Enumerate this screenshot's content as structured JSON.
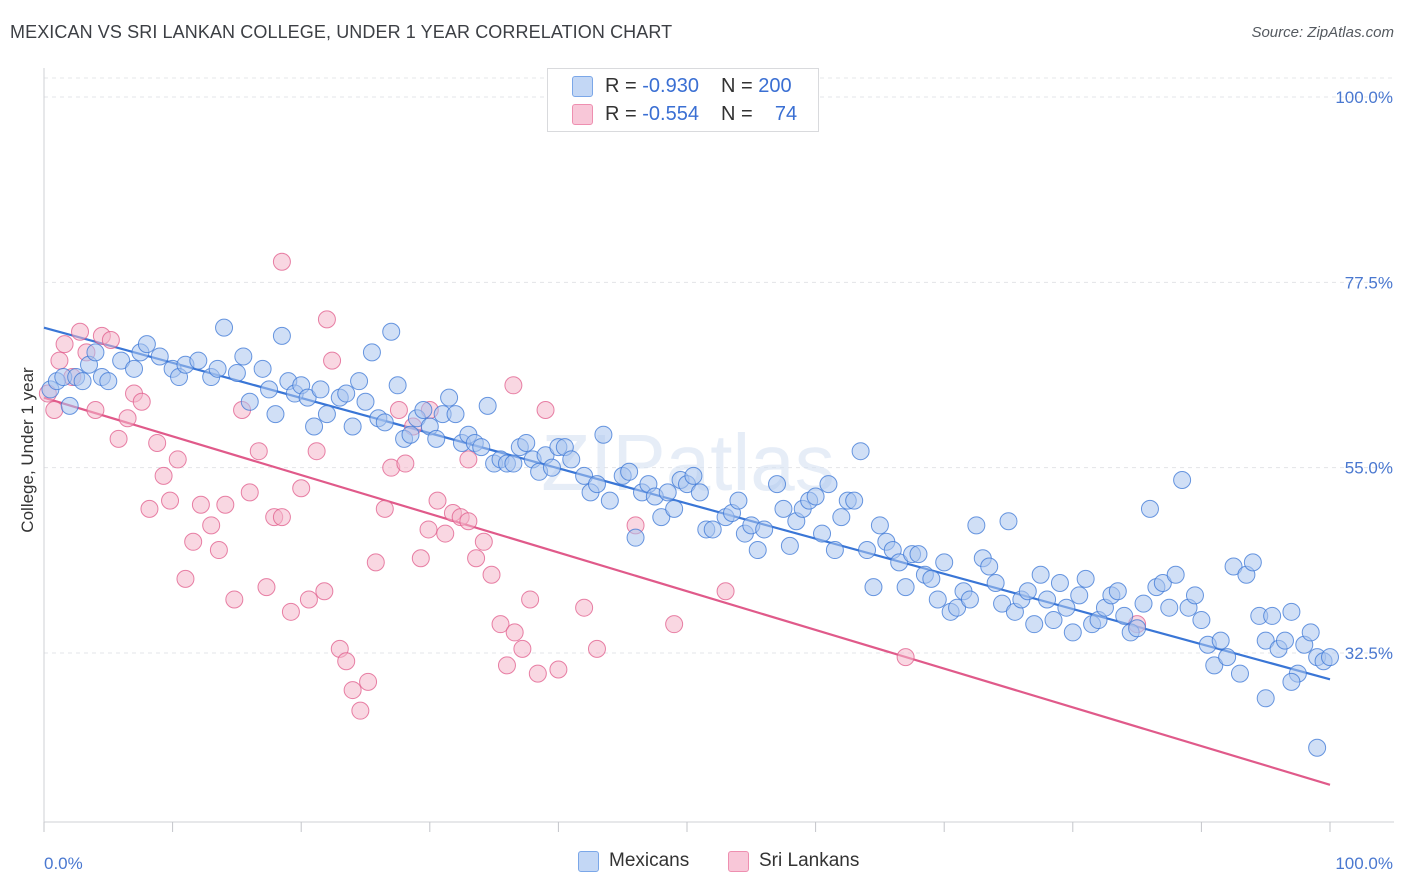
{
  "title": "MEXICAN VS SRI LANKAN COLLEGE, UNDER 1 YEAR CORRELATION CHART",
  "source": "Source: ZipAtlas.com",
  "watermark": "ZIPatlas",
  "legend": {
    "r_label": "R =",
    "n_label": "N =",
    "rows": [
      {
        "r": "-0.930",
        "n": "200",
        "color": "#7ba7e8",
        "fill": "#c3d7f5"
      },
      {
        "r": "-0.554",
        "n": "74",
        "color": "#ee8fb0",
        "fill": "#f8c7d8"
      }
    ]
  },
  "bottom_legend": [
    "Mexicans",
    "Sri Lankans"
  ],
  "chart_data": {
    "type": "scatter",
    "title": "MEXICAN VS SRI LANKAN COLLEGE, UNDER 1 YEAR CORRELATION CHART",
    "xlabel": "",
    "ylabel": "College, Under 1 year",
    "xlim": [
      0,
      100
    ],
    "ylim": [
      10,
      105
    ],
    "x_tick_labels": [
      "0.0%",
      "100.0%"
    ],
    "y_ticks": [
      32.5,
      55.0,
      77.5,
      100.0
    ],
    "y_tick_labels": [
      "32.5%",
      "55.0%",
      "77.5%",
      "100.0%"
    ],
    "grid": true,
    "legend_placement": "top-center",
    "series": [
      {
        "name": "Mexicans",
        "color": "#3a76d6",
        "fill": "#a9c5ef",
        "trend": {
          "x": [
            0,
            100
          ],
          "y": [
            72.0,
            29.3
          ]
        },
        "points": [
          [
            0.5,
            64.5
          ],
          [
            1,
            65.5
          ],
          [
            1.5,
            66
          ],
          [
            2,
            62.5
          ],
          [
            2.5,
            66
          ],
          [
            3,
            65.5
          ],
          [
            3.5,
            67.5
          ],
          [
            4,
            69
          ],
          [
            4.5,
            66
          ],
          [
            5,
            65.5
          ],
          [
            6,
            68
          ],
          [
            7,
            67
          ],
          [
            7.5,
            69
          ],
          [
            8,
            70
          ],
          [
            9,
            68.5
          ],
          [
            10,
            67
          ],
          [
            10.5,
            66
          ],
          [
            11,
            67.5
          ],
          [
            12,
            68
          ],
          [
            13,
            66
          ],
          [
            13.5,
            67
          ],
          [
            14,
            72
          ],
          [
            15,
            66.5
          ],
          [
            15.5,
            68.5
          ],
          [
            16,
            63
          ],
          [
            17,
            67
          ],
          [
            17.5,
            64.5
          ],
          [
            18,
            61.5
          ],
          [
            18.5,
            71
          ],
          [
            19,
            65.5
          ],
          [
            19.5,
            64
          ],
          [
            20,
            65
          ],
          [
            20.5,
            63.5
          ],
          [
            21,
            60
          ],
          [
            21.5,
            64.5
          ],
          [
            22,
            61.5
          ],
          [
            23,
            63.5
          ],
          [
            23.5,
            64
          ],
          [
            24,
            60
          ],
          [
            24.5,
            65.5
          ],
          [
            25,
            63
          ],
          [
            25.5,
            69
          ],
          [
            26,
            61
          ],
          [
            26.5,
            60.5
          ],
          [
            27,
            71.5
          ],
          [
            27.5,
            65
          ],
          [
            28,
            58.5
          ],
          [
            28.5,
            59
          ],
          [
            29,
            61
          ],
          [
            29.5,
            62
          ],
          [
            30,
            60
          ],
          [
            30.5,
            58.5
          ],
          [
            31,
            61.5
          ],
          [
            31.5,
            63.5
          ],
          [
            32,
            61.5
          ],
          [
            32.5,
            58
          ],
          [
            33,
            59
          ],
          [
            33.5,
            58
          ],
          [
            34,
            57.5
          ],
          [
            34.5,
            62.5
          ],
          [
            35,
            55.5
          ],
          [
            35.5,
            56
          ],
          [
            36,
            55.5
          ],
          [
            36.5,
            55.5
          ],
          [
            37,
            57.5
          ],
          [
            37.5,
            58
          ],
          [
            38,
            56
          ],
          [
            38.5,
            54.5
          ],
          [
            39,
            56.5
          ],
          [
            39.5,
            55
          ],
          [
            40,
            57.5
          ],
          [
            40.5,
            57.5
          ],
          [
            41,
            56
          ],
          [
            42,
            54
          ],
          [
            42.5,
            52
          ],
          [
            43,
            53
          ],
          [
            43.5,
            59
          ],
          [
            44,
            51
          ],
          [
            45,
            54
          ],
          [
            45.5,
            54.5
          ],
          [
            46,
            46.5
          ],
          [
            46.5,
            52
          ],
          [
            47,
            53
          ],
          [
            47.5,
            51.5
          ],
          [
            48,
            49
          ],
          [
            48.5,
            52
          ],
          [
            49,
            50
          ],
          [
            49.5,
            53.5
          ],
          [
            50,
            53
          ],
          [
            50.5,
            54
          ],
          [
            51,
            52
          ],
          [
            51.5,
            47.5
          ],
          [
            52,
            47.5
          ],
          [
            53,
            49
          ],
          [
            53.5,
            49.5
          ],
          [
            54,
            51
          ],
          [
            54.5,
            47
          ],
          [
            55,
            48
          ],
          [
            55.5,
            45
          ],
          [
            56,
            47.5
          ],
          [
            57,
            53
          ],
          [
            57.5,
            50
          ],
          [
            58,
            45.5
          ],
          [
            58.5,
            48.5
          ],
          [
            59,
            50
          ],
          [
            59.5,
            51
          ],
          [
            60,
            51.5
          ],
          [
            60.5,
            47
          ],
          [
            61,
            53
          ],
          [
            61.5,
            45
          ],
          [
            62,
            49
          ],
          [
            62.5,
            51
          ],
          [
            63,
            51
          ],
          [
            63.5,
            57
          ],
          [
            64,
            45
          ],
          [
            64.5,
            40.5
          ],
          [
            65,
            48
          ],
          [
            65.5,
            46
          ],
          [
            66,
            45
          ],
          [
            66.5,
            43.5
          ],
          [
            67,
            40.5
          ],
          [
            67.5,
            44.5
          ],
          [
            68,
            44.5
          ],
          [
            68.5,
            42
          ],
          [
            69,
            41.5
          ],
          [
            69.5,
            39
          ],
          [
            70,
            43.5
          ],
          [
            70.5,
            37.5
          ],
          [
            71,
            38
          ],
          [
            71.5,
            40
          ],
          [
            72,
            39
          ],
          [
            72.5,
            48
          ],
          [
            73,
            44
          ],
          [
            73.5,
            43
          ],
          [
            74,
            41
          ],
          [
            74.5,
            38.5
          ],
          [
            75,
            48.5
          ],
          [
            75.5,
            37.5
          ],
          [
            76,
            39
          ],
          [
            76.5,
            40
          ],
          [
            77,
            36
          ],
          [
            77.5,
            42
          ],
          [
            78,
            39
          ],
          [
            78.5,
            36.5
          ],
          [
            79,
            41
          ],
          [
            79.5,
            38
          ],
          [
            80,
            35
          ],
          [
            80.5,
            39.5
          ],
          [
            81,
            41.5
          ],
          [
            81.5,
            36
          ],
          [
            82,
            36.5
          ],
          [
            82.5,
            38
          ],
          [
            83,
            39.5
          ],
          [
            83.5,
            40
          ],
          [
            84,
            37
          ],
          [
            84.5,
            35
          ],
          [
            85,
            35.5
          ],
          [
            85.5,
            38.5
          ],
          [
            86,
            50
          ],
          [
            86.5,
            40.5
          ],
          [
            87,
            41
          ],
          [
            87.5,
            38
          ],
          [
            88,
            42
          ],
          [
            88.5,
            53.5
          ],
          [
            89,
            38
          ],
          [
            89.5,
            39.5
          ],
          [
            90,
            36.5
          ],
          [
            90.5,
            33.5
          ],
          [
            91,
            31
          ],
          [
            91.5,
            34
          ],
          [
            92,
            32
          ],
          [
            92.5,
            43
          ],
          [
            93,
            30
          ],
          [
            93.5,
            42
          ],
          [
            94,
            43.5
          ],
          [
            94.5,
            37
          ],
          [
            95,
            34
          ],
          [
            95.5,
            37
          ],
          [
            96,
            33
          ],
          [
            96.5,
            34
          ],
          [
            97,
            37.5
          ],
          [
            97.5,
            30
          ],
          [
            98,
            33.5
          ],
          [
            98.5,
            35
          ],
          [
            99,
            32
          ],
          [
            99.5,
            31.5
          ],
          [
            97,
            29
          ],
          [
            95,
            27
          ],
          [
            99,
            21
          ],
          [
            100,
            32
          ]
        ]
      },
      {
        "name": "Sri Lankans",
        "color": "#e05a8a",
        "fill": "#f4b6cb",
        "trend": {
          "x": [
            0,
            100
          ],
          "y": [
            63.5,
            16.5
          ]
        },
        "points": [
          [
            0.3,
            64
          ],
          [
            0.8,
            62
          ],
          [
            1.2,
            68
          ],
          [
            1.6,
            70
          ],
          [
            2.2,
            66
          ],
          [
            2.8,
            71.5
          ],
          [
            3.3,
            69
          ],
          [
            4,
            62
          ],
          [
            4.5,
            71
          ],
          [
            5.2,
            70.5
          ],
          [
            5.8,
            58.5
          ],
          [
            6.5,
            61
          ],
          [
            7,
            64
          ],
          [
            7.6,
            63
          ],
          [
            8.2,
            50
          ],
          [
            8.8,
            58
          ],
          [
            9.3,
            54
          ],
          [
            9.8,
            51
          ],
          [
            10.4,
            56
          ],
          [
            11,
            41.5
          ],
          [
            11.6,
            46
          ],
          [
            12.2,
            50.5
          ],
          [
            13,
            48
          ],
          [
            13.6,
            45
          ],
          [
            14.1,
            50.5
          ],
          [
            14.8,
            39
          ],
          [
            15.4,
            62
          ],
          [
            16,
            52
          ],
          [
            16.7,
            57
          ],
          [
            17.3,
            40.5
          ],
          [
            17.9,
            49
          ],
          [
            18.5,
            49
          ],
          [
            19.2,
            37.5
          ],
          [
            20,
            52.5
          ],
          [
            20.6,
            39
          ],
          [
            21.2,
            57
          ],
          [
            21.8,
            40
          ],
          [
            22.4,
            68
          ],
          [
            23,
            33
          ],
          [
            23.5,
            31.5
          ],
          [
            24,
            28
          ],
          [
            24.6,
            25.5
          ],
          [
            25.2,
            29
          ],
          [
            25.8,
            43.5
          ],
          [
            26.5,
            50
          ],
          [
            27,
            55
          ],
          [
            27.6,
            62
          ],
          [
            28.1,
            55.5
          ],
          [
            28.7,
            60
          ],
          [
            29.3,
            44
          ],
          [
            29.9,
            47.5
          ],
          [
            30.6,
            51
          ],
          [
            31.2,
            47
          ],
          [
            31.8,
            49.5
          ],
          [
            32.4,
            49
          ],
          [
            33,
            48.5
          ],
          [
            33.6,
            44
          ],
          [
            34.2,
            46
          ],
          [
            34.8,
            42
          ],
          [
            35.5,
            36
          ],
          [
            36,
            31
          ],
          [
            36.6,
            35
          ],
          [
            37.2,
            33
          ],
          [
            37.8,
            39
          ],
          [
            38.4,
            30
          ],
          [
            39,
            62
          ],
          [
            40,
            30.5
          ],
          [
            42,
            38
          ],
          [
            43,
            33
          ],
          [
            46,
            48
          ],
          [
            49,
            36
          ],
          [
            53,
            40
          ],
          [
            67,
            32
          ],
          [
            85,
            36
          ]
        ],
        "extra_points": [
          [
            18.5,
            80
          ],
          [
            22,
            73
          ],
          [
            30,
            62
          ],
          [
            33,
            56
          ],
          [
            36.5,
            65
          ]
        ]
      }
    ]
  }
}
